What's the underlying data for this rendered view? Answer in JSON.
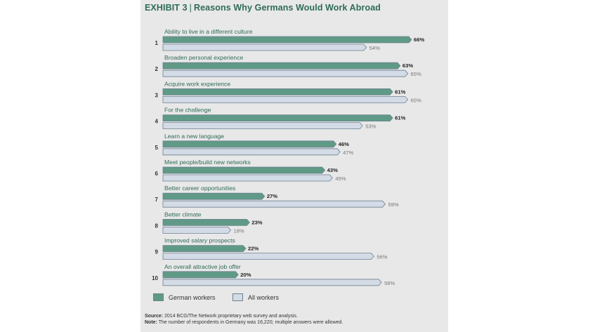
{
  "header": {
    "exhibit": "EXHIBIT 3",
    "title": "Reasons Why Germans Would Work Abroad"
  },
  "colors": {
    "german": "#5f9a86",
    "all": "#d3dbe6",
    "outline": "#6f8190",
    "title": "#2e6b57",
    "label": "#2e6b57"
  },
  "chart_data": {
    "type": "bar",
    "orientation": "horizontal",
    "ylim": [
      0,
      70
    ],
    "categories": [
      "Ability to live in a different culture",
      "Broaden personal experience",
      "Acquire work experience",
      "For the challenge",
      "Learn a new language",
      "Meet people/build new networks",
      "Better career opportunities",
      "Better climate",
      "Improved salary prospects",
      "An overall attractive job offer"
    ],
    "ranks": [
      "1",
      "2",
      "3",
      "4",
      "5",
      "6",
      "7",
      "8",
      "9",
      "10"
    ],
    "series": [
      {
        "name": "German workers",
        "values": [
          66,
          63,
          61,
          61,
          46,
          43,
          27,
          23,
          22,
          20
        ]
      },
      {
        "name": "All workers",
        "values": [
          54,
          65,
          65,
          53,
          47,
          45,
          59,
          18,
          56,
          58
        ]
      }
    ]
  },
  "legend": {
    "german_label": "German workers",
    "all_label": "All workers"
  },
  "footer": {
    "source_label": "Source:",
    "source_text": "2014 BCG/The Network proprietary web survey and analysis.",
    "note_label": "Note:",
    "note_text": "The number of respondents in Germany was 16,220; multiple answers were allowed."
  }
}
